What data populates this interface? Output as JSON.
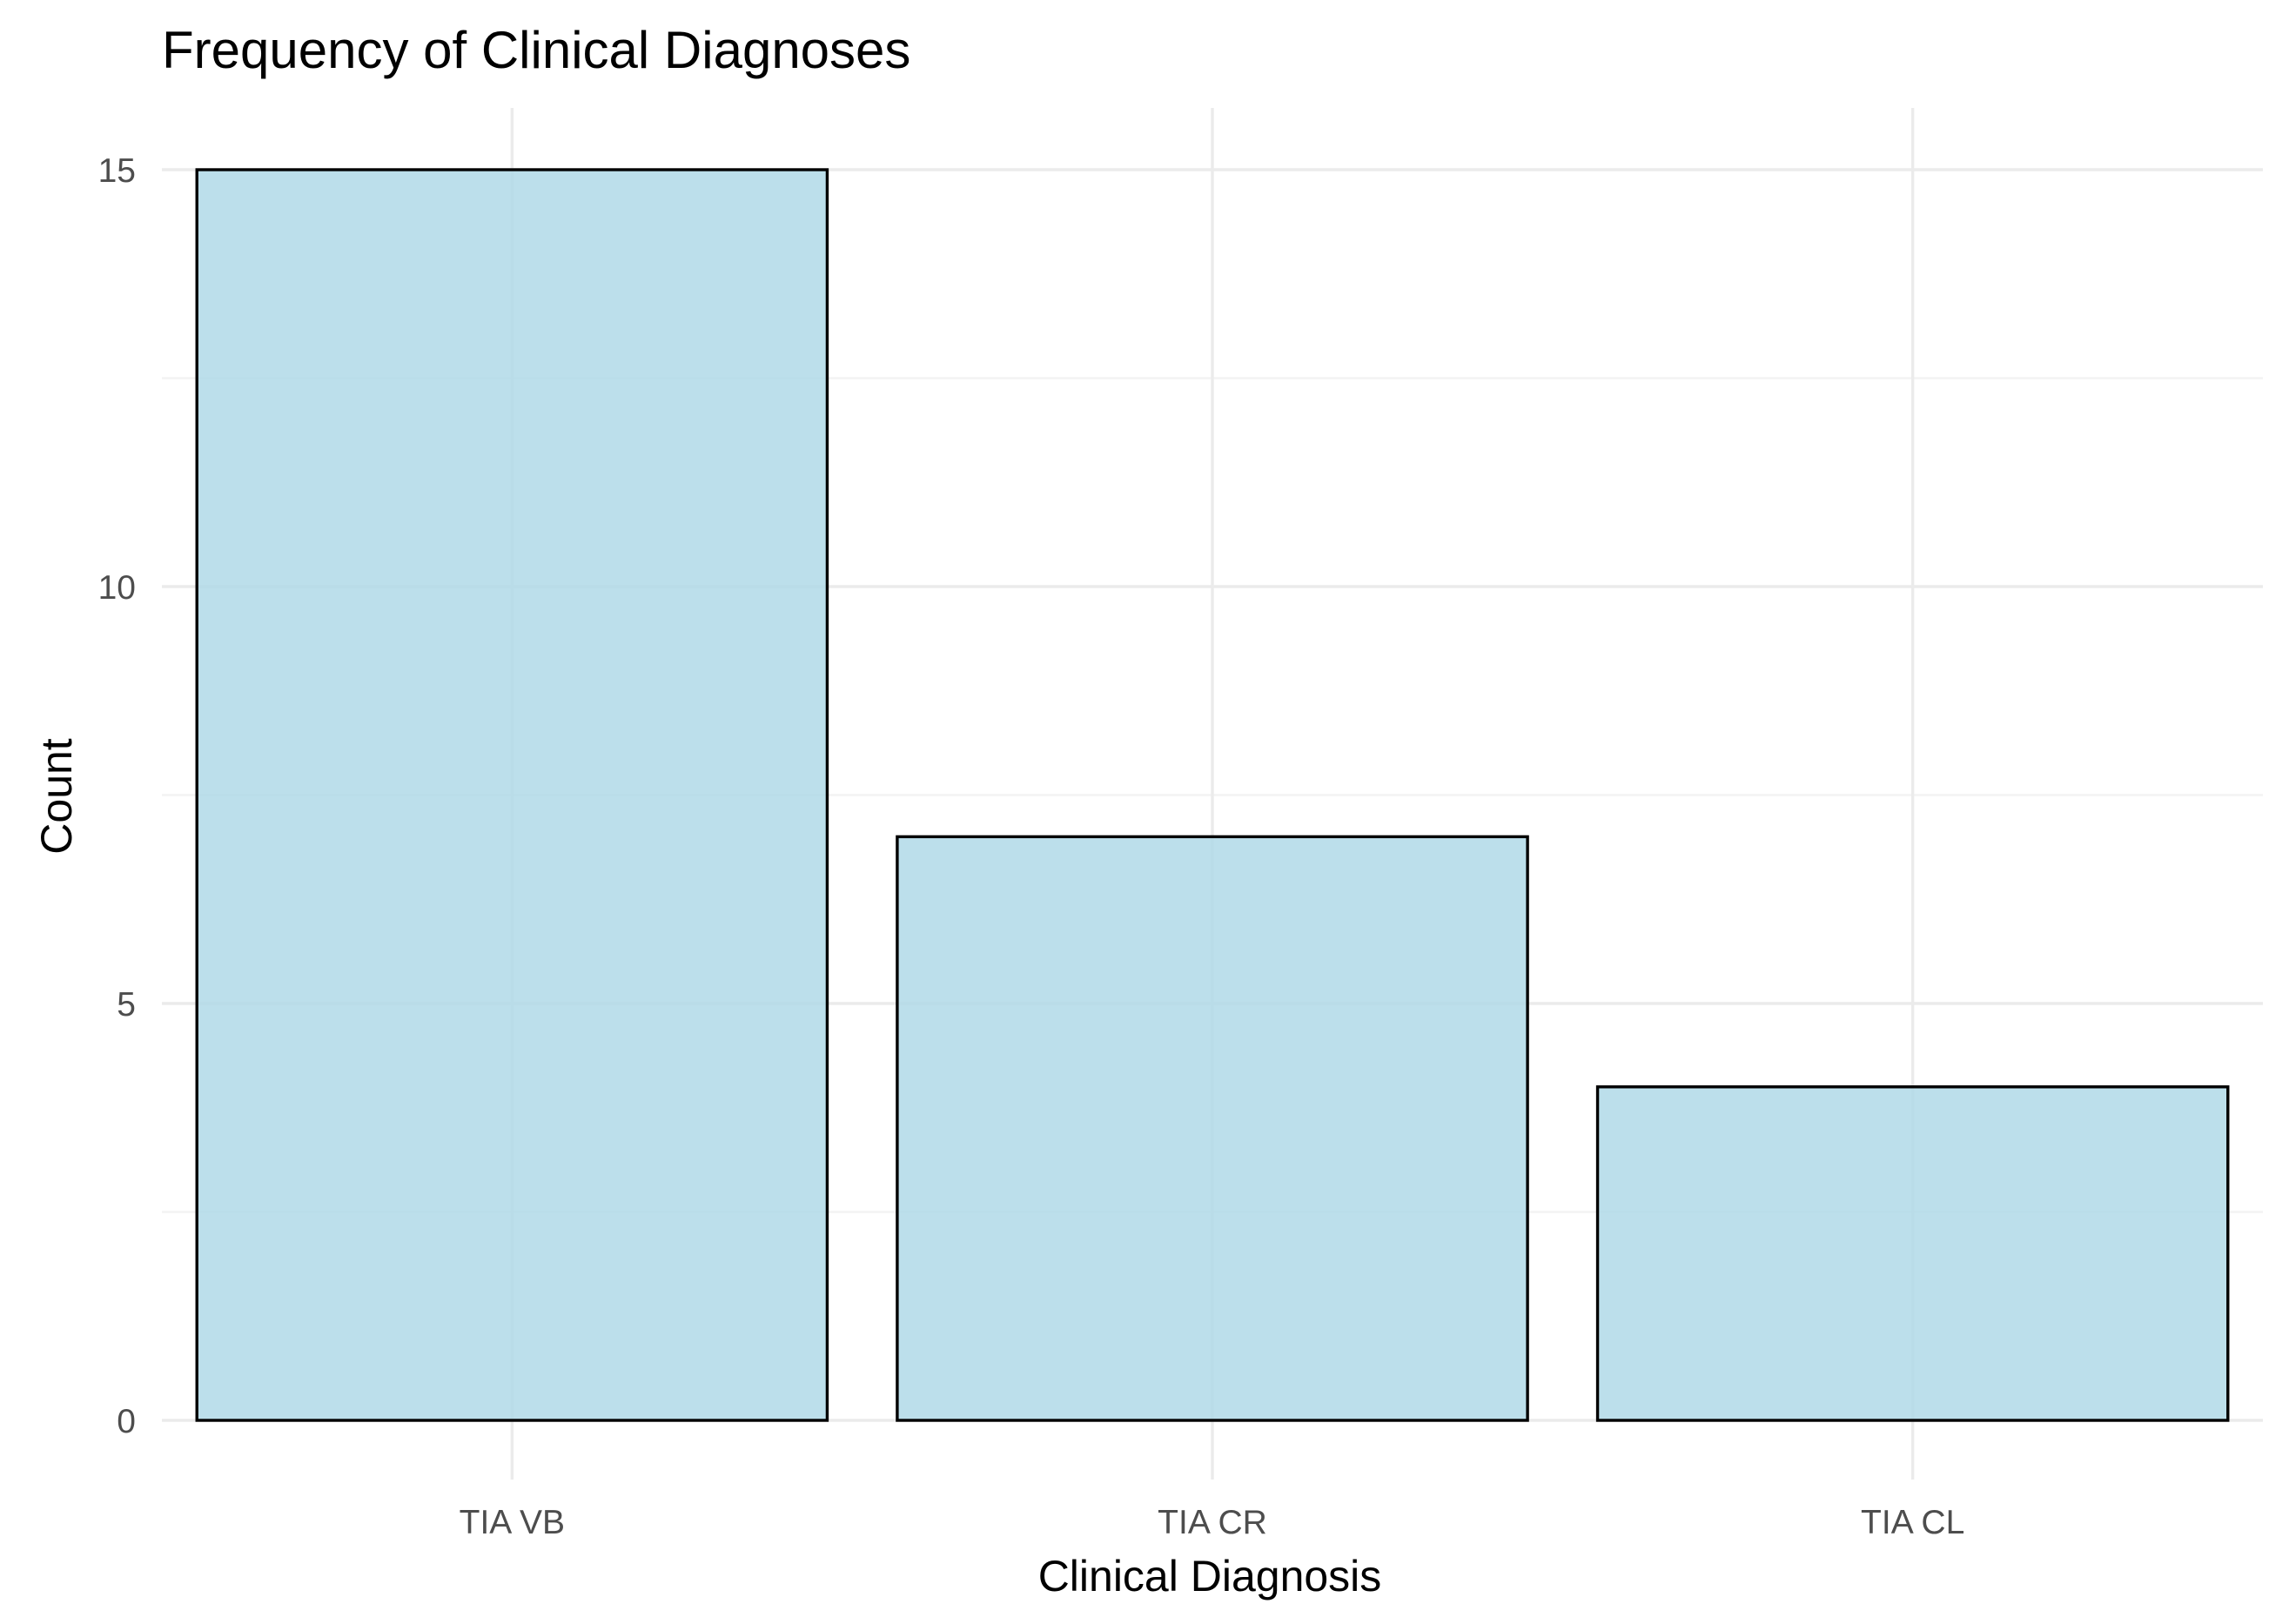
{
  "chart_data": {
    "type": "bar",
    "title": "Frequency of Clinical Diagnoses",
    "xlabel": "Clinical Diagnosis",
    "ylabel": "Count",
    "categories": [
      "TIA VB",
      "TIA CR",
      "TIA CL"
    ],
    "values": [
      15,
      7,
      4
    ],
    "ylim": [
      0,
      15.75
    ],
    "y_ticks": [
      0,
      5,
      10,
      15
    ],
    "y_minor_ticks": [
      2.5,
      7.5,
      12.5
    ],
    "grid": true,
    "legend": "none",
    "colors": {
      "bar_fill": "#add8e6",
      "bar_outline": "#000000",
      "grid_major": "#ebebeb",
      "grid_minor": "#f3f3f3",
      "tick_text": "#4d4d4d",
      "title_text": "#000000"
    }
  }
}
